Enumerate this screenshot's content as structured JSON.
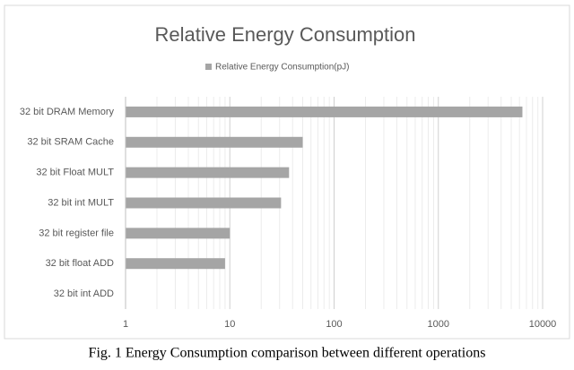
{
  "chart_data": {
    "type": "bar",
    "orientation": "horizontal",
    "title": "Relative Energy Consumption",
    "categories": [
      "32 bit DRAM Memory",
      "32 bit SRAM Cache",
      "32 bit Float MULT",
      "32 bit int MULT",
      "32 bit register file",
      "32 bit float ADD",
      "32 bit int ADD"
    ],
    "series": [
      {
        "name": "Relative Energy Consumption(pJ)",
        "color": "#a5a5a5",
        "values": [
          6400,
          50,
          37,
          31,
          10,
          9,
          1
        ]
      }
    ],
    "xlim": [
      1,
      10000
    ],
    "xticks": [
      1,
      10,
      100,
      1000,
      10000
    ],
    "log_scale": true,
    "grid": true,
    "legend": "top"
  },
  "caption": "Fig.  1 Energy Consumption comparison between different operations"
}
